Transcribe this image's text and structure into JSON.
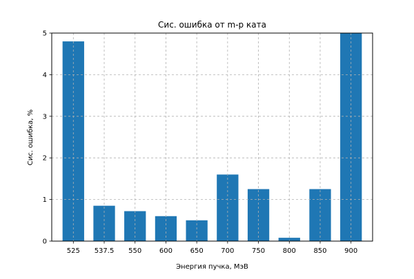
{
  "chart_data": {
    "type": "bar",
    "title": "Сис. ошибка от m-p ката",
    "xlabel": "Энергия пучка, МэВ",
    "ylabel": "Сис. ошибка, %",
    "categories": [
      "525",
      "537.5",
      "550",
      "600",
      "650",
      "700",
      "750",
      "800",
      "850",
      "900"
    ],
    "values": [
      4.8,
      0.85,
      0.72,
      0.6,
      0.5,
      1.6,
      1.25,
      0.08,
      1.25,
      5.0
    ],
    "ylim": [
      0,
      5
    ],
    "yticks": [
      "0",
      "1",
      "2",
      "3",
      "4",
      "5"
    ],
    "grid": true,
    "bar_color": "#1f77b4",
    "grid_color": "#b0b0b0"
  }
}
